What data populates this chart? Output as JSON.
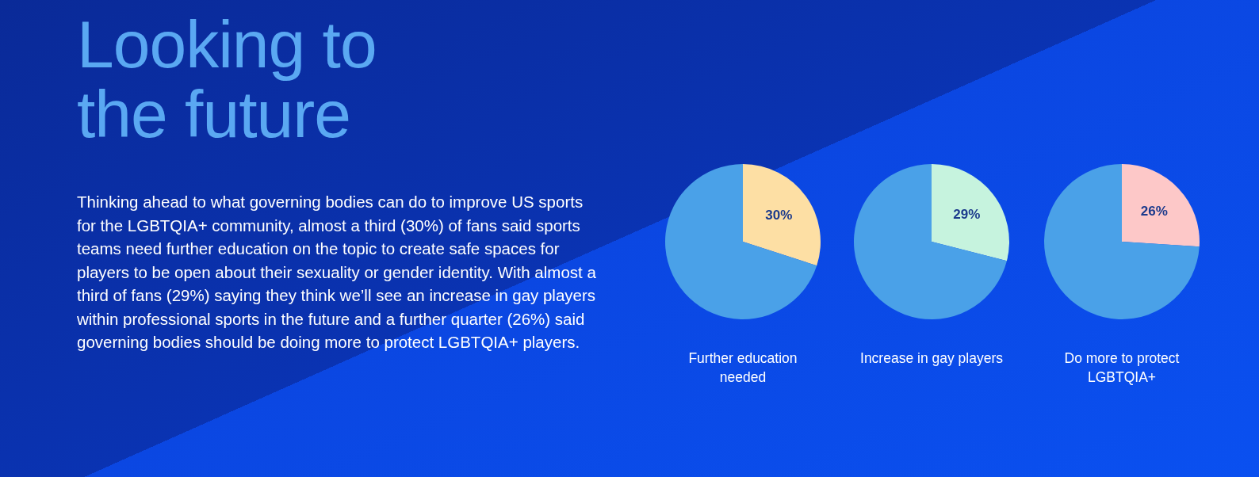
{
  "chart_data": [
    {
      "type": "other",
      "title": "Looking to the future",
      "annotations": [
        "Thinking ahead to what governing bodies can do to improve US sports for the LGBTQIA+ community, almost a third (30%) of fans said sports teams need further education on the topic to create safe spaces for players to be open about their sexuality or gender identity. With almost a third of fans (29%) saying they think we’ll see an increase in gay players within professional sports in the future and a further quarter (26%) said governing bodies should be doing more to protect LGBTQIA+ players."
      ]
    },
    {
      "type": "pie",
      "title": "Further education needed",
      "categories": [
        null,
        null
      ],
      "values": [
        30,
        70
      ],
      "colors": [
        "#fddfa4",
        "#4aa1e8"
      ],
      "value_labels": [
        "30%",
        null
      ]
    },
    {
      "type": "pie",
      "title": "Increase in gay players",
      "categories": [
        null,
        null
      ],
      "values": [
        29,
        71
      ],
      "colors": [
        "#c6f3de",
        "#4aa1e8"
      ],
      "value_labels": [
        "29%",
        null
      ]
    },
    {
      "type": "pie",
      "title": "Do more to protect LGBTQIA+",
      "categories": [
        null,
        null
      ],
      "values": [
        26,
        74
      ],
      "colors": [
        "#fdc8c8",
        "#4aa1e8"
      ],
      "value_labels": [
        "26%",
        null
      ]
    }
  ]
}
